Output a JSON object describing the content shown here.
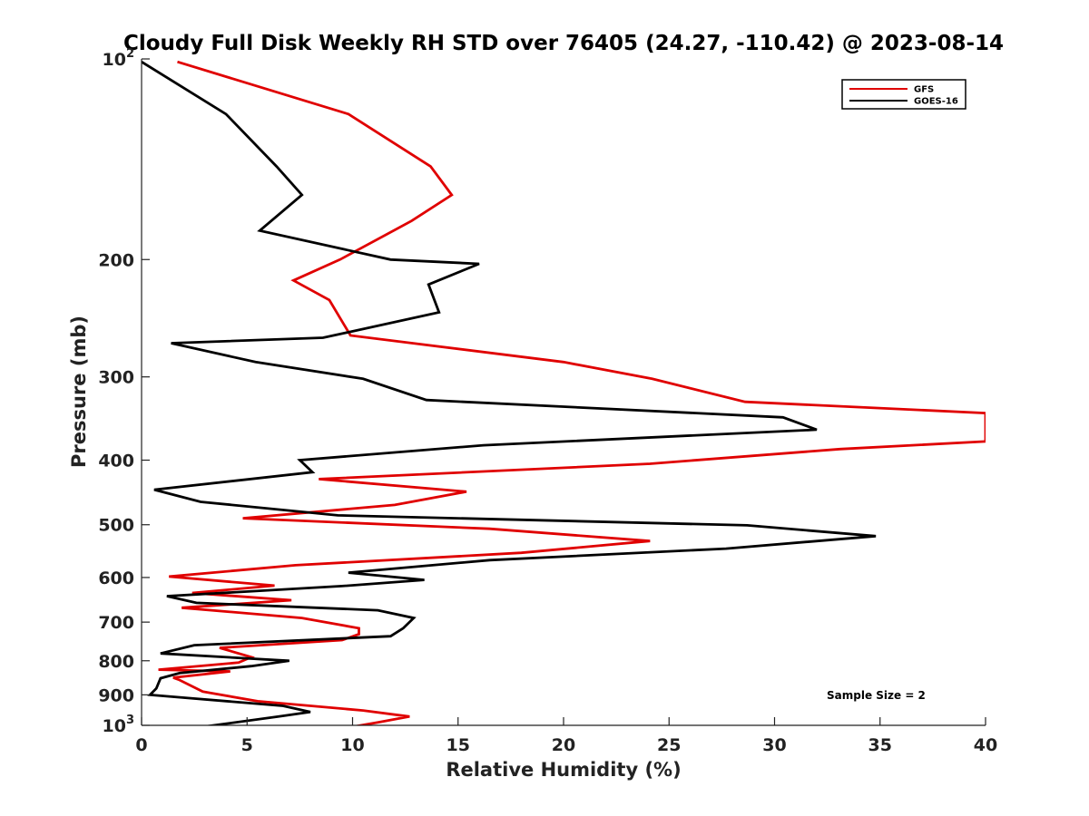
{
  "chart_data": {
    "type": "line",
    "title": "Cloudy Full Disk Weekly RH STD over 76405 (24.27, -110.42) @ 2023-08-14",
    "xlabel": "Relative Humidity (%)",
    "ylabel": "Pressure (mb)",
    "xlim": [
      0,
      40
    ],
    "ylim": [
      100,
      1000
    ],
    "yscale": "log",
    "y_reversed": true,
    "grid": false,
    "legend_position": "top-right",
    "x_ticks": [
      0,
      5,
      10,
      15,
      20,
      25,
      30,
      35,
      40
    ],
    "x_tick_labels": [
      "0",
      "5",
      "10",
      "15",
      "20",
      "25",
      "30",
      "35",
      "40"
    ],
    "y_ticks": [
      100,
      200,
      300,
      400,
      500,
      600,
      700,
      800,
      900,
      1000
    ],
    "y_tick_labels": [
      {
        "base": "10",
        "exp": "2"
      },
      {
        "base": "200",
        "exp": ""
      },
      {
        "base": "300",
        "exp": ""
      },
      {
        "base": "400",
        "exp": ""
      },
      {
        "base": "500",
        "exp": ""
      },
      {
        "base": "600",
        "exp": ""
      },
      {
        "base": "700",
        "exp": ""
      },
      {
        "base": "800",
        "exp": ""
      },
      {
        "base": "900",
        "exp": ""
      },
      {
        "base": "10",
        "exp": "3"
      }
    ],
    "annotation": "Sample Size = 2",
    "series": [
      {
        "name": "GFS",
        "color": "#e00000",
        "x": [
          1.7,
          9.8,
          13.7,
          14.7,
          12.8,
          9.4,
          7.2,
          8.9,
          9.9,
          20.0,
          24.2,
          28.6,
          40.0,
          40.0,
          33.1,
          24.1,
          8.4,
          15.4,
          12.0,
          4.8,
          16.5,
          24.1,
          18.0,
          7.3,
          1.3,
          6.3,
          2.4,
          7.1,
          1.9,
          7.6,
          10.3,
          10.3,
          9.5,
          3.7,
          5.2,
          4.6,
          0.8,
          4.2,
          1.5,
          1.8,
          2.9,
          5.5,
          10.5,
          12.7,
          11.2,
          9.6
        ],
        "y": [
          101,
          121,
          145,
          160,
          175,
          200,
          215,
          230,
          260,
          285,
          302,
          327,
          340,
          375,
          385,
          405,
          427,
          446,
          467,
          489,
          507,
          529,
          551,
          575,
          598,
          617,
          633,
          649,
          666,
          690,
          715,
          730,
          745,
          765,
          790,
          805,
          825,
          830,
          848,
          855,
          890,
          920,
          950,
          970,
          990,
          1010
        ]
      },
      {
        "name": "GOES-16",
        "color": "#000000",
        "x": [
          0.0,
          4.0,
          6.4,
          7.6,
          5.6,
          11.8,
          16.0,
          13.6,
          14.1,
          8.6,
          1.4,
          5.4,
          10.5,
          13.5,
          30.4,
          32.0,
          16.2,
          7.5,
          8.1,
          0.6,
          2.8,
          9.3,
          28.7,
          34.8,
          27.7,
          16.5,
          9.8,
          13.4,
          9.5,
          1.2,
          2.6,
          11.2,
          12.9,
          12.4,
          11.8,
          2.5,
          0.9,
          7.0,
          5.2,
          1.8,
          0.9,
          0.7,
          0.4,
          2.2,
          6.7,
          8.0,
          6.5,
          2.4
        ],
        "y": [
          101,
          121,
          145,
          160,
          181,
          200,
          203,
          218,
          240,
          262,
          267,
          285,
          302,
          325,
          345,
          360,
          380,
          400,
          417,
          443,
          462,
          484,
          501,
          520,
          543,
          565,
          590,
          605,
          618,
          640,
          655,
          672,
          690,
          715,
          735,
          758,
          780,
          800,
          815,
          835,
          850,
          880,
          900,
          910,
          935,
          955,
          970,
          1010
        ]
      }
    ]
  }
}
